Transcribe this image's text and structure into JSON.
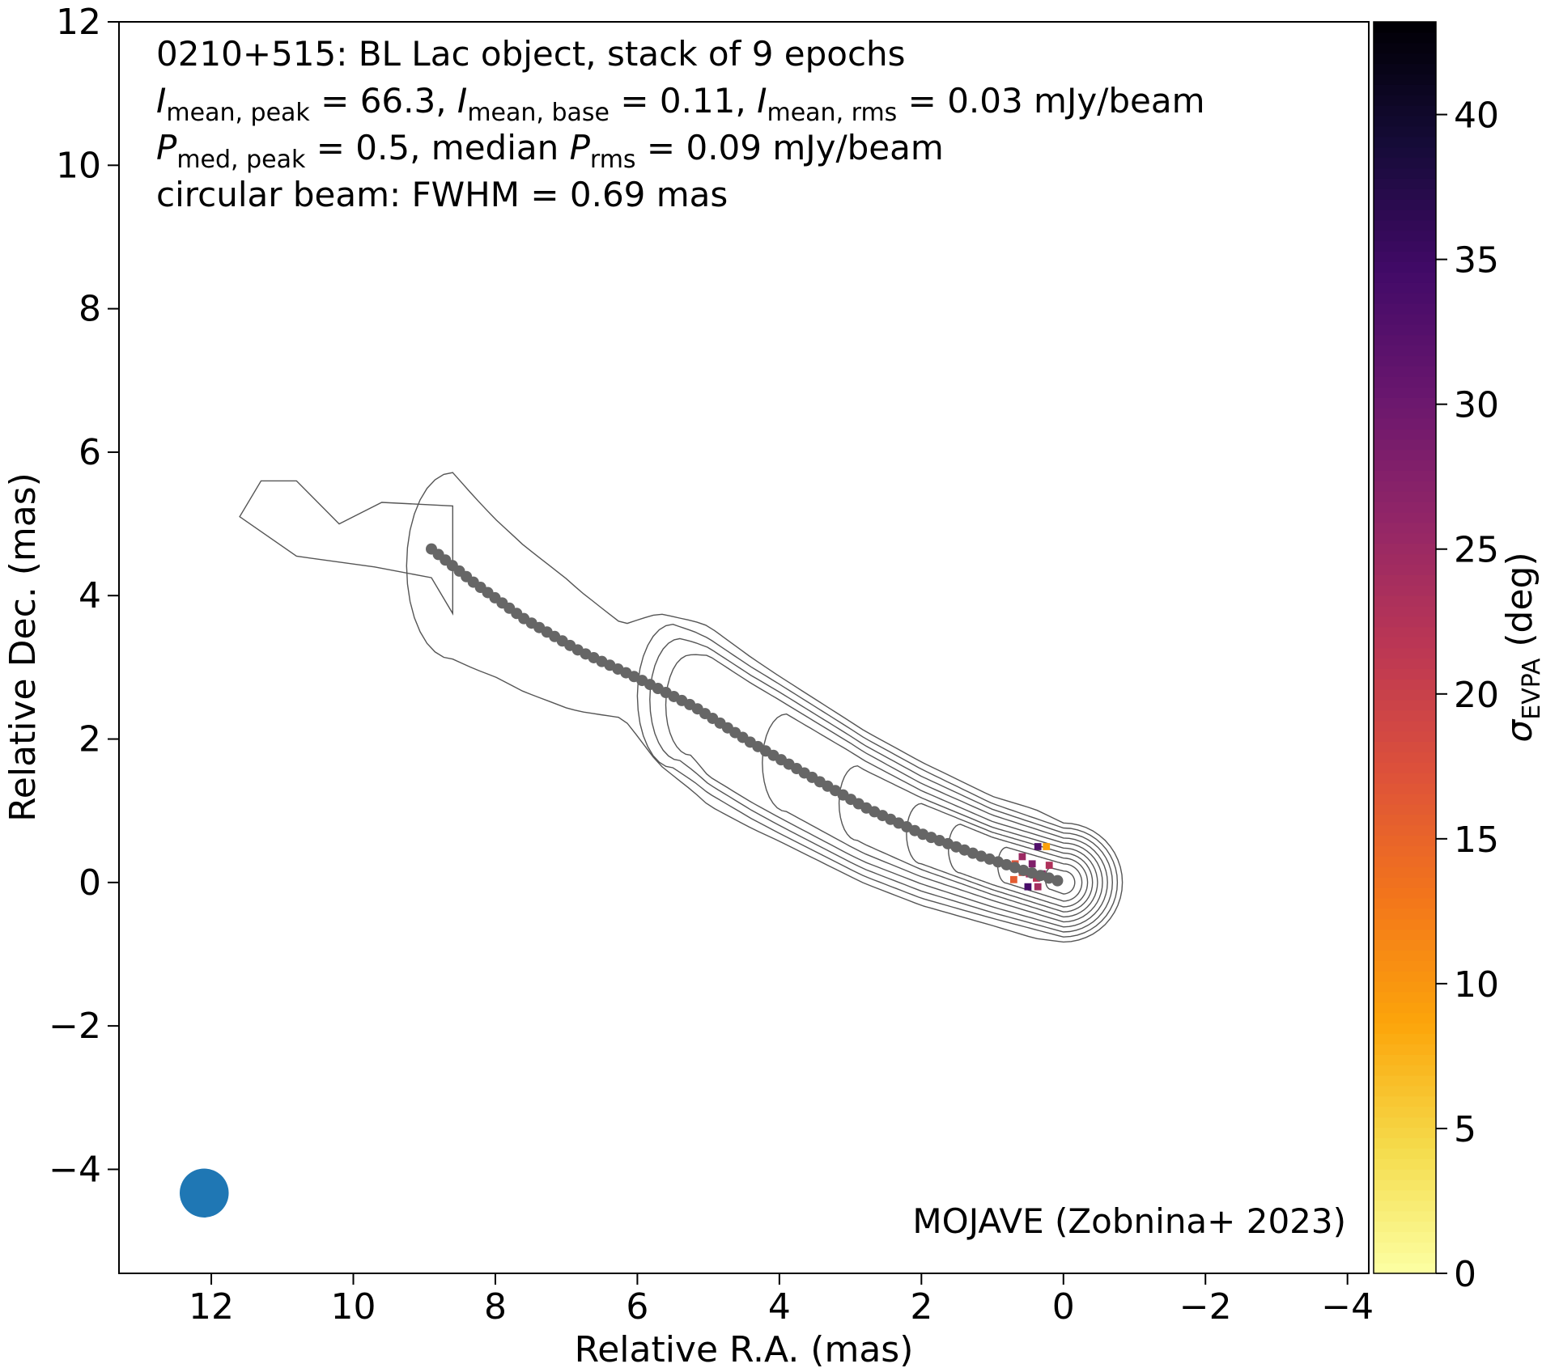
{
  "chart_data": {
    "type": "scatter",
    "annotation_lines": [
      [
        {
          "t": "0210+515: BL Lac object, stack of 9 epochs"
        }
      ],
      [
        {
          "t": "I",
          "i": true
        },
        {
          "t": "mean, peak",
          "sub": true
        },
        {
          "t": " = 66.3, "
        },
        {
          "t": "I",
          "i": true
        },
        {
          "t": "mean, base",
          "sub": true
        },
        {
          "t": " = 0.11, "
        },
        {
          "t": "I",
          "i": true
        },
        {
          "t": "mean, rms",
          "sub": true
        },
        {
          "t": " = 0.03 mJy/beam"
        }
      ],
      [
        {
          "t": "P",
          "i": true
        },
        {
          "t": "med, peak",
          "sub": true
        },
        {
          "t": " = 0.5, median "
        },
        {
          "t": "P",
          "i": true
        },
        {
          "t": "rms",
          "sub": true
        },
        {
          "t": " = 0.09 mJy/beam"
        }
      ],
      [
        {
          "t": "circular beam: FWHM = 0.69 mas"
        }
      ]
    ],
    "credit": "MOJAVE (Zobnina+ 2023)",
    "xlabel": "Relative R.A. (mas)",
    "ylabel": "Relative Dec. (mas)",
    "xlim": [
      13.3,
      -4.3
    ],
    "ylim": [
      -5.45,
      12.0
    ],
    "xticks": [
      12,
      10,
      8,
      6,
      4,
      2,
      0,
      -2,
      -4
    ],
    "yticks": [
      12,
      10,
      8,
      6,
      4,
      2,
      0,
      -2,
      -4
    ],
    "grid": false,
    "ridge_line": {
      "color": "#666666",
      "points": [
        [
          8.9,
          4.65
        ],
        [
          8.3,
          4.18
        ],
        [
          7.6,
          3.68
        ],
        [
          6.8,
          3.22
        ],
        [
          6.0,
          2.85
        ],
        [
          5.2,
          2.45
        ],
        [
          4.4,
          1.95
        ],
        [
          3.6,
          1.5
        ],
        [
          2.8,
          1.05
        ],
        [
          2.0,
          0.68
        ],
        [
          1.2,
          0.38
        ],
        [
          0.6,
          0.18
        ],
        [
          0.0,
          0.0
        ]
      ]
    },
    "beam": {
      "center": [
        12.1,
        -4.33
      ],
      "fwhm_mas": 0.69,
      "color": "#1f77b4"
    },
    "colorbar": {
      "label_symbol": "σ",
      "label_sub": "EVPA",
      "label_unit": " (deg)",
      "range": [
        0,
        43.2
      ],
      "ticks": [
        0,
        5,
        10,
        15,
        20,
        25,
        30,
        35,
        40
      ],
      "colormap": "inferno_r"
    },
    "sigma_pixels": [
      {
        "x": 0.58,
        "y": 0.14,
        "v": 18
      },
      {
        "x": 0.48,
        "y": 0.12,
        "v": 24
      },
      {
        "x": 0.38,
        "y": 0.06,
        "v": 22
      },
      {
        "x": 0.3,
        "y": 0.12,
        "v": 26
      },
      {
        "x": 0.2,
        "y": 0.24,
        "v": 23
      },
      {
        "x": 0.68,
        "y": 0.26,
        "v": 17
      },
      {
        "x": 0.7,
        "y": 0.04,
        "v": 16
      },
      {
        "x": 0.5,
        "y": -0.06,
        "v": 34
      },
      {
        "x": 0.36,
        "y": -0.06,
        "v": 24
      },
      {
        "x": 0.44,
        "y": 0.26,
        "v": 28
      },
      {
        "x": 0.24,
        "y": 0.5,
        "v": 9
      },
      {
        "x": 0.36,
        "y": 0.5,
        "v": 33
      },
      {
        "x": 0.58,
        "y": 0.36,
        "v": 25
      }
    ]
  }
}
